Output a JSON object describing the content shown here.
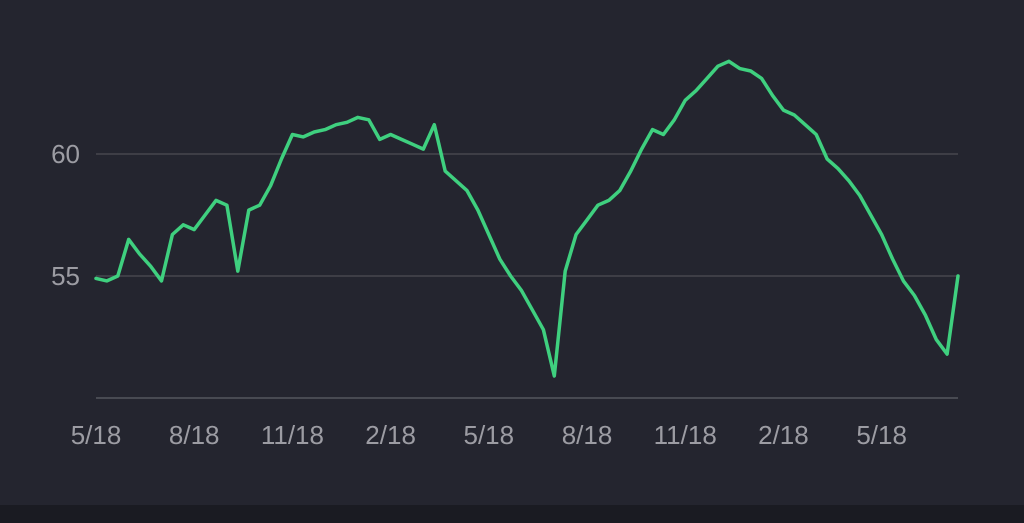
{
  "chart_data": {
    "type": "line",
    "color": "#3fd07f",
    "grid": true,
    "categories": [
      "5/18",
      null,
      null,
      null,
      null,
      null,
      null,
      null,
      null,
      "8/18",
      null,
      null,
      null,
      null,
      null,
      null,
      null,
      null,
      "11/18",
      null,
      null,
      null,
      null,
      null,
      null,
      null,
      null,
      "2/18",
      null,
      null,
      null,
      null,
      null,
      null,
      null,
      null,
      "5/18",
      null,
      null,
      null,
      null,
      null,
      null,
      null,
      null,
      "8/18",
      null,
      null,
      null,
      null,
      null,
      null,
      null,
      null,
      "11/18",
      null,
      null,
      null,
      null,
      null,
      null,
      null,
      null,
      "2/18",
      null,
      null,
      null,
      null,
      null,
      null,
      null,
      null,
      "5/18",
      null,
      null,
      null,
      null,
      null,
      null,
      null
    ],
    "values": [
      54.9,
      54.8,
      55.0,
      56.5,
      55.9,
      55.4,
      54.8,
      56.7,
      57.1,
      56.9,
      57.5,
      58.1,
      57.9,
      55.2,
      57.7,
      57.9,
      58.7,
      59.8,
      60.8,
      60.7,
      60.9,
      61.0,
      61.2,
      61.3,
      61.5,
      61.4,
      60.6,
      60.8,
      60.6,
      60.4,
      60.2,
      61.2,
      59.3,
      58.9,
      58.5,
      57.7,
      56.7,
      55.7,
      55.0,
      54.4,
      53.6,
      52.8,
      50.9,
      55.2,
      56.7,
      57.3,
      57.9,
      58.1,
      58.5,
      59.3,
      60.2,
      61.0,
      60.8,
      61.4,
      62.2,
      62.6,
      63.1,
      63.6,
      63.8,
      63.5,
      63.4,
      63.1,
      62.4,
      61.8,
      61.6,
      61.2,
      60.8,
      59.8,
      59.4,
      58.9,
      58.3,
      57.5,
      56.7,
      55.7,
      54.8,
      54.2,
      53.4,
      52.4,
      51.8,
      55.0
    ],
    "ylim": [
      50,
      65
    ],
    "yticks": [
      55,
      60
    ]
  }
}
